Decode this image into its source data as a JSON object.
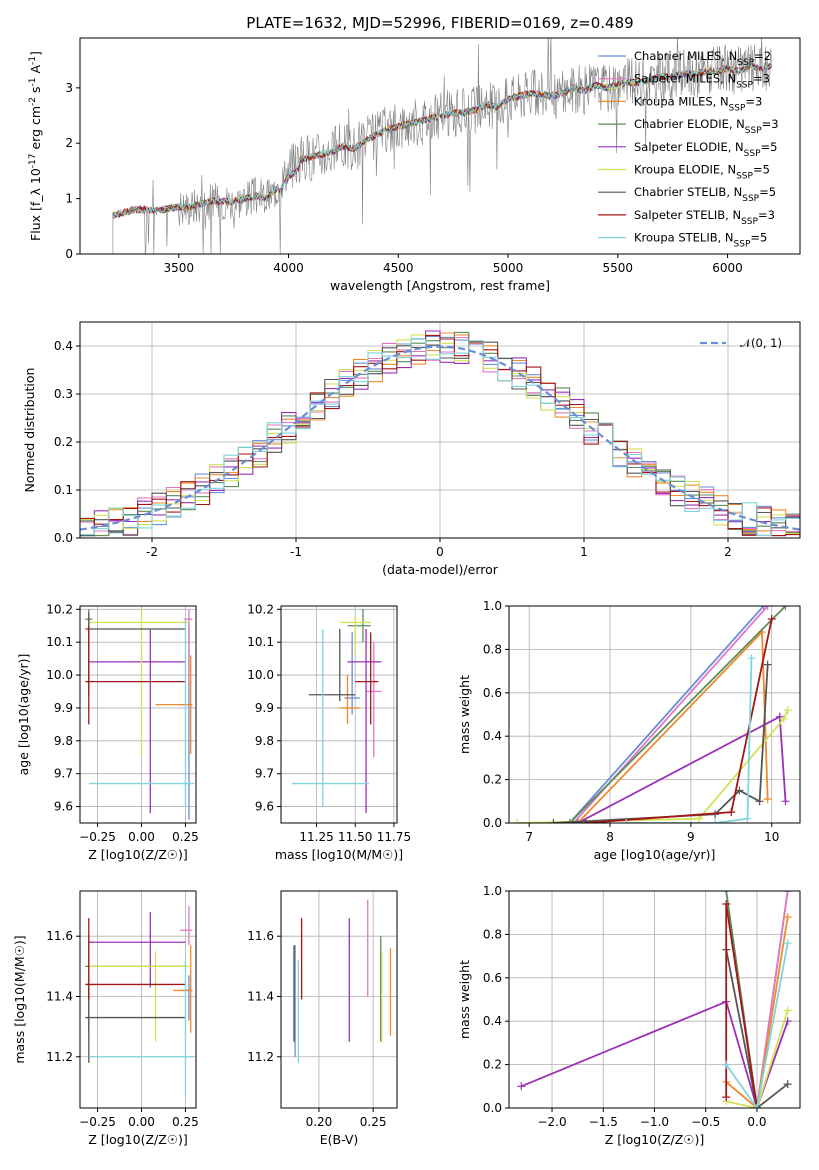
{
  "figure_title": "PLATE=1632, MJD=52996, FIBERID=0169, z=0.489",
  "colors": {
    "Chabrier MILES": "#6a8ed6",
    "Salpeter MILES": "#e377c2",
    "Kroupa MILES": "#ef8b2c",
    "Chabrier ELODIE": "#5b8c5a",
    "Salpeter ELODIE": "#9b30b8",
    "Kroupa ELODIE": "#d4e157",
    "Chabrier STELIB": "#555555",
    "Salpeter STELIB": "#a51515",
    "Kroupa STELIB": "#80d4dc",
    "data": "#808080",
    "normal": "#6a8ed6"
  },
  "chart_data": [
    {
      "id": "spectrum",
      "type": "line",
      "title": "PLATE=1632, MJD=52996, FIBERID=0169, z=0.489",
      "xlabel": "wavelength [Angstrom, rest frame]",
      "ylabel": "Flux [f_λ 10^-17 erg cm^-2 s^-1 A^-1]",
      "xlim": [
        3050,
        6330
      ],
      "ylim": [
        0,
        3.9
      ],
      "xticks": [
        3500,
        4000,
        4500,
        5000,
        5500,
        6000
      ],
      "yticks": [
        0,
        1,
        2,
        3
      ],
      "legend_position": "upper right",
      "legend": [
        "Chabrier MILES, N_SSP=2",
        "Salpeter MILES, N_SSP=3",
        "Kroupa MILES, N_SSP=3",
        "Chabrier ELODIE, N_SSP=3",
        "Salpeter ELODIE, N_SSP=5",
        "Kroupa ELODIE, N_SSP=5",
        "Chabrier STELIB, N_SSP=5",
        "Salpeter STELIB, N_SSP=3",
        "Kroupa STELIB, N_SSP=5"
      ],
      "model_curve": {
        "x": [
          3200,
          3250,
          3300,
          3350,
          3400,
          3450,
          3500,
          3550,
          3600,
          3650,
          3700,
          3750,
          3800,
          3850,
          3900,
          3950,
          4000,
          4050,
          4100,
          4150,
          4200,
          4250,
          4300,
          4350,
          4400,
          4450,
          4500,
          4550,
          4600,
          4650,
          4700,
          4750,
          4800,
          4850,
          4900,
          4950,
          5000,
          5050,
          5100,
          5150,
          5200,
          5250,
          5300,
          5350,
          5400,
          5450,
          5500,
          5550,
          5600,
          5650,
          5700,
          5750,
          5800,
          5850,
          5900,
          5950,
          6000,
          6050,
          6100,
          6150,
          6200
        ],
        "y": [
          0.7,
          0.75,
          0.8,
          0.8,
          0.78,
          0.82,
          0.85,
          0.85,
          0.9,
          0.95,
          0.95,
          0.95,
          1.0,
          1.05,
          1.0,
          1.2,
          1.55,
          1.7,
          1.75,
          1.8,
          1.85,
          1.95,
          1.9,
          2.05,
          2.15,
          2.25,
          2.3,
          2.35,
          2.4,
          2.45,
          2.5,
          2.55,
          2.55,
          2.6,
          2.7,
          2.65,
          2.8,
          2.85,
          2.9,
          2.88,
          2.85,
          2.9,
          3.0,
          2.95,
          3.05,
          3.0,
          3.05,
          3.1,
          3.1,
          3.15,
          3.2,
          3.2,
          3.25,
          3.25,
          3.3,
          3.3,
          3.35,
          3.3,
          3.4,
          3.35,
          3.4
        ]
      },
      "data_range": [
        3200,
        6200
      ]
    },
    {
      "id": "residuals",
      "type": "histogram",
      "xlabel": "(data-model)/error",
      "ylabel": "Normed distribution",
      "xlim": [
        -2.5,
        2.5
      ],
      "ylim": [
        0,
        0.45
      ],
      "xticks": [
        -2,
        -1,
        0,
        1,
        2
      ],
      "yticks": [
        0.0,
        0.1,
        0.2,
        0.3,
        0.4
      ],
      "legend_position": "upper right",
      "legend": [
        "𝒩(0, 1)"
      ],
      "reference": "normal distribution N(0,1)",
      "bin_width": 0.1
    },
    {
      "id": "age-vs-Z",
      "type": "errorbar",
      "xlabel": "Z [log10(Z/Z☉)]",
      "ylabel": "age [log10(age/yr)]",
      "xlim": [
        -0.35,
        0.31
      ],
      "ylim": [
        9.55,
        10.21
      ],
      "xticks": [
        -0.25,
        0.0,
        0.25
      ],
      "xtick_labels": [
        "−0.25",
        "0.00",
        "0.25"
      ],
      "yticks": [
        9.6,
        9.7,
        9.8,
        9.9,
        10.0,
        10.1,
        10.2
      ],
      "points": [
        {
          "model": "Chabrier MILES",
          "x": 0.27,
          "xerr": [
            0.05,
            0.02
          ],
          "y": 9.91,
          "yerr": [
            0.35,
            0.25
          ]
        },
        {
          "model": "Salpeter MILES",
          "x": 0.27,
          "xerr": [
            0.03,
            0.02
          ],
          "y": 10.17,
          "yerr": [
            0.2,
            0.03
          ]
        },
        {
          "model": "Kroupa MILES",
          "x": 0.28,
          "xerr": [
            0.2,
            0.01
          ],
          "y": 9.91,
          "yerr": [
            0.15,
            0.15
          ]
        },
        {
          "model": "Chabrier ELODIE",
          "x": -0.3,
          "xerr": [
            0.02,
            0.02
          ],
          "y": 10.17,
          "yerr": [
            0.08,
            0.03
          ]
        },
        {
          "model": "Salpeter ELODIE",
          "x": 0.05,
          "xerr": [
            0.35,
            0.2
          ],
          "y": 10.04,
          "yerr": [
            0.46,
            0.1
          ]
        },
        {
          "model": "Kroupa ELODIE",
          "x": 0.0,
          "xerr": [
            0.3,
            0.27
          ],
          "y": 10.16,
          "yerr": [
            0.4,
            0.04
          ]
        },
        {
          "model": "Chabrier STELIB",
          "x": -0.3,
          "xerr": [
            0.02,
            0.55
          ],
          "y": 10.14,
          "yerr": [
            0.2,
            0.05
          ]
        },
        {
          "model": "Salpeter STELIB",
          "x": -0.3,
          "xerr": [
            0.02,
            0.55
          ],
          "y": 9.98,
          "yerr": [
            0.13,
            0.17
          ]
        },
        {
          "model": "Kroupa STELIB",
          "x": 0.25,
          "xerr": [
            0.55,
            0.05
          ],
          "y": 9.67,
          "yerr": [
            0.07,
            0.5
          ]
        }
      ]
    },
    {
      "id": "age-vs-mass",
      "type": "errorbar",
      "xlabel": "mass [log10(M/M☉)]",
      "ylabel": "",
      "xlim": [
        11.02,
        11.77
      ],
      "ylim": [
        9.55,
        10.21
      ],
      "xticks": [
        11.25,
        11.5,
        11.75
      ],
      "xtick_labels": [
        "11.25",
        "11.50",
        "11.75"
      ],
      "yticks": [
        9.6,
        9.7,
        9.8,
        9.9,
        10.0,
        10.1,
        10.2
      ],
      "points": [
        {
          "model": "Chabrier MILES",
          "x": 11.48,
          "xerr": [
            0.05,
            0.05
          ],
          "y": 9.93,
          "yerr": [
            0.05,
            0.2
          ]
        },
        {
          "model": "Salpeter MILES",
          "x": 11.62,
          "xerr": [
            0.05,
            0.05
          ],
          "y": 9.95,
          "yerr": [
            0.2,
            0.15
          ]
        },
        {
          "model": "Kroupa MILES",
          "x": 11.45,
          "xerr": [
            0.05,
            0.08
          ],
          "y": 9.9,
          "yerr": [
            0.05,
            0.1
          ]
        },
        {
          "model": "Chabrier ELODIE",
          "x": 11.55,
          "xerr": [
            0.1,
            0.05
          ],
          "y": 10.15,
          "yerr": [
            0.05,
            0.05
          ]
        },
        {
          "model": "Salpeter ELODIE",
          "x": 11.57,
          "xerr": [
            0.12,
            0.1
          ],
          "y": 10.04,
          "yerr": [
            0.46,
            0.1
          ]
        },
        {
          "model": "Kroupa ELODIE",
          "x": 11.5,
          "xerr": [
            0.1,
            0.1
          ],
          "y": 10.16,
          "yerr": [
            0.1,
            0.02
          ]
        },
        {
          "model": "Chabrier STELIB",
          "x": 11.4,
          "xerr": [
            0.2,
            0.1
          ],
          "y": 9.94,
          "yerr": [
            0.02,
            0.2
          ]
        },
        {
          "model": "Salpeter STELIB",
          "x": 11.6,
          "xerr": [
            0.1,
            0.05
          ],
          "y": 9.98,
          "yerr": [
            0.13,
            0.15
          ]
        },
        {
          "model": "Kroupa STELIB",
          "x": 11.29,
          "xerr": [
            0.2,
            0.3
          ],
          "y": 9.67,
          "yerr": [
            0.07,
            0.47
          ]
        }
      ]
    },
    {
      "id": "massweight-vs-age",
      "type": "line",
      "xlabel": "age [log10(age/yr)]",
      "ylabel": "mass weight",
      "xlim": [
        6.75,
        10.35
      ],
      "ylim": [
        0,
        1.0
      ],
      "xticks": [
        7,
        8,
        9,
        10
      ],
      "yticks": [
        0.0,
        0.2,
        0.4,
        0.6,
        0.8,
        1.0
      ],
      "series": [
        {
          "model": "Chabrier MILES",
          "x": [
            7.5,
            9.9
          ],
          "y": [
            0.0,
            1.0
          ]
        },
        {
          "model": "Salpeter MILES",
          "x": [
            7.55,
            9.95
          ],
          "y": [
            0.0,
            1.0
          ]
        },
        {
          "model": "Kroupa MILES",
          "x": [
            7.6,
            9.88,
            9.95
          ],
          "y": [
            0.0,
            0.88,
            0.11
          ]
        },
        {
          "model": "Chabrier ELODIE",
          "x": [
            7.5,
            10.17
          ],
          "y": [
            0.0,
            1.0
          ]
        },
        {
          "model": "Salpeter ELODIE",
          "x": [
            7.6,
            10.1,
            10.17
          ],
          "y": [
            0.0,
            0.49,
            0.1
          ]
        },
        {
          "model": "Kroupa ELODIE",
          "x": [
            6.85,
            9.1,
            10.15,
            10.2
          ],
          "y": [
            0.0,
            0.02,
            0.48,
            0.52
          ]
        },
        {
          "model": "Chabrier STELIB",
          "x": [
            7.3,
            9.3,
            9.6,
            9.85,
            9.95
          ],
          "y": [
            0.0,
            0.04,
            0.15,
            0.1,
            0.73
          ]
        },
        {
          "model": "Salpeter STELIB",
          "x": [
            7.7,
            9.5,
            10.0
          ],
          "y": [
            0.0,
            0.05,
            0.94
          ]
        },
        {
          "model": "Kroupa STELIB",
          "x": [
            8.2,
            9.3,
            9.7,
            9.75
          ],
          "y": [
            0.0,
            0.0,
            0.02,
            0.76
          ]
        }
      ]
    },
    {
      "id": "mass-vs-Z",
      "type": "errorbar",
      "xlabel": "Z [log10(Z/Z☉)]",
      "ylabel": "mass [log10(M/M☉)]",
      "xlim": [
        -0.35,
        0.31
      ],
      "ylim": [
        11.03,
        11.75
      ],
      "xticks": [
        -0.25,
        0.0,
        0.25
      ],
      "xtick_labels": [
        "−0.25",
        "0.00",
        "0.25"
      ],
      "yticks": [
        11.2,
        11.4,
        11.6
      ],
      "points": [
        {
          "model": "Chabrier MILES",
          "x": 0.27,
          "xerr": [
            0.05,
            0.02
          ],
          "y": 11.42,
          "yerr": [
            0.1,
            0.05
          ]
        },
        {
          "model": "Salpeter MILES",
          "x": 0.27,
          "xerr": [
            0.05,
            0.02
          ],
          "y": 11.62,
          "yerr": [
            0.05,
            0.08
          ]
        },
        {
          "model": "Kroupa MILES",
          "x": 0.28,
          "xerr": [
            0.1,
            0.01
          ],
          "y": 11.42,
          "yerr": [
            0.14,
            0.15
          ]
        },
        {
          "model": "Chabrier ELODIE",
          "x": -0.3,
          "xerr": [
            0.02,
            0.55
          ],
          "y": 11.5,
          "yerr": [
            0.22,
            0.1
          ]
        },
        {
          "model": "Salpeter ELODIE",
          "x": 0.05,
          "xerr": [
            0.35,
            0.2
          ],
          "y": 11.58,
          "yerr": [
            0.15,
            0.1
          ]
        },
        {
          "model": "Kroupa ELODIE",
          "x": 0.08,
          "xerr": [
            0.38,
            0.2
          ],
          "y": 11.5,
          "yerr": [
            0.25,
            0.05
          ]
        },
        {
          "model": "Chabrier STELIB",
          "x": -0.3,
          "xerr": [
            0.02,
            0.55
          ],
          "y": 11.33,
          "yerr": [
            0.15,
            0.1
          ]
        },
        {
          "model": "Salpeter STELIB",
          "x": -0.3,
          "xerr": [
            0.02,
            0.55
          ],
          "y": 11.44,
          "yerr": [
            0.05,
            0.22
          ]
        },
        {
          "model": "Kroupa STELIB",
          "x": 0.25,
          "xerr": [
            0.55,
            0.05
          ],
          "y": 11.2,
          "yerr": [
            0.13,
            0.32
          ]
        }
      ]
    },
    {
      "id": "mass-vs-EBV",
      "type": "errorbar",
      "xlabel": "E(B-V)",
      "ylabel": "",
      "xlim": [
        0.165,
        0.272
      ],
      "ylim": [
        11.03,
        11.75
      ],
      "xticks": [
        0.2,
        0.25
      ],
      "xtick_labels": [
        "0.20",
        "0.25"
      ],
      "yticks": [
        11.2,
        11.4,
        11.6
      ],
      "points": [
        {
          "model": "Chabrier MILES",
          "x": 0.178,
          "xerr": [
            0,
            0
          ],
          "y": 11.45,
          "yerr": [
            0.25,
            0.12
          ]
        },
        {
          "model": "Salpeter MILES",
          "x": 0.245,
          "xerr": [
            0,
            0
          ],
          "y": 11.55,
          "yerr": [
            0.15,
            0.17
          ]
        },
        {
          "model": "Kroupa MILES",
          "x": 0.266,
          "xerr": [
            0,
            0
          ],
          "y": 11.42,
          "yerr": [
            0.15,
            0.14
          ]
        },
        {
          "model": "Chabrier ELODIE",
          "x": 0.257,
          "xerr": [
            0,
            0
          ],
          "y": 11.45,
          "yerr": [
            0.2,
            0.15
          ]
        },
        {
          "model": "Salpeter ELODIE",
          "x": 0.228,
          "xerr": [
            0,
            0
          ],
          "y": 11.45,
          "yerr": [
            0.2,
            0.21
          ]
        },
        {
          "model": "Kroupa ELODIE",
          "x": 0.258,
          "xerr": [
            0,
            0
          ],
          "y": 11.4,
          "yerr": [
            0.15,
            0.15
          ]
        },
        {
          "model": "Chabrier STELIB",
          "x": 0.177,
          "xerr": [
            0,
            0
          ],
          "y": 11.4,
          "yerr": [
            0.15,
            0.17
          ]
        },
        {
          "model": "Salpeter STELIB",
          "x": 0.184,
          "xerr": [
            0,
            0
          ],
          "y": 11.53,
          "yerr": [
            0.14,
            0.13
          ]
        },
        {
          "model": "Kroupa STELIB",
          "x": 0.181,
          "xerr": [
            0,
            0
          ],
          "y": 11.3,
          "yerr": [
            0.12,
            0.22
          ]
        }
      ]
    },
    {
      "id": "massweight-vs-Z",
      "type": "line",
      "xlabel": "Z [log10(Z/Z☉)]",
      "ylabel": "mass weight",
      "xlim": [
        -2.42,
        0.42
      ],
      "ylim": [
        0,
        1.0
      ],
      "xticks": [
        -2.0,
        -1.5,
        -1.0,
        -0.5,
        0.0
      ],
      "xtick_labels": [
        "−2.0",
        "−1.5",
        "−1.0",
        "−0.5",
        "0.0"
      ],
      "yticks": [
        0.0,
        0.2,
        0.4,
        0.6,
        0.8,
        1.0
      ],
      "series": [
        {
          "model": "Chabrier MILES",
          "x": [
            0.0,
            0.3
          ],
          "y": [
            0.0,
            1.0
          ]
        },
        {
          "model": "Salpeter MILES",
          "x": [
            0.0,
            0.3
          ],
          "y": [
            0.0,
            1.0
          ]
        },
        {
          "model": "Kroupa MILES",
          "x": [
            -0.3,
            0.0,
            0.3
          ],
          "y": [
            0.12,
            0.0,
            0.88
          ]
        },
        {
          "model": "Chabrier ELODIE",
          "x": [
            -0.3,
            0.0
          ],
          "y": [
            1.0,
            0.0
          ]
        },
        {
          "model": "Salpeter ELODIE",
          "x": [
            -2.3,
            -0.3,
            0.0,
            0.3
          ],
          "y": [
            0.1,
            0.49,
            0.0,
            0.4
          ]
        },
        {
          "model": "Kroupa ELODIE",
          "x": [
            -0.3,
            0.0,
            0.3
          ],
          "y": [
            0.03,
            0.0,
            0.45
          ]
        },
        {
          "model": "Chabrier STELIB",
          "x": [
            -0.3,
            0.0,
            0.3
          ],
          "y": [
            0.73,
            0.0,
            0.11
          ]
        },
        {
          "model": "Salpeter STELIB",
          "x": [
            -0.3,
            -0.3,
            0.0
          ],
          "y": [
            0.05,
            0.94,
            0.0
          ]
        },
        {
          "model": "Kroupa STELIB",
          "x": [
            -0.3,
            0.0,
            0.3
          ],
          "y": [
            0.2,
            0.0,
            0.76
          ]
        }
      ]
    }
  ]
}
